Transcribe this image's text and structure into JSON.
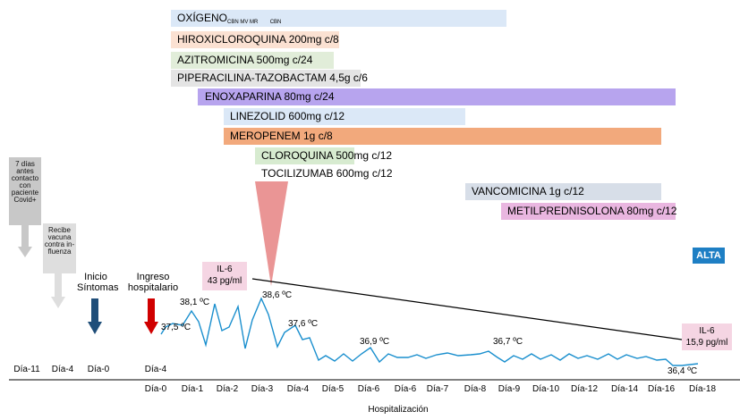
{
  "treatments": {
    "oxigeno": {
      "label": "OXÍGENO",
      "sub1": "CBN MV MR",
      "sub2": "CBN",
      "color": "#dbe8f7"
    },
    "hidroxi": {
      "label": "HIROXICLOROQUINA 200mg  c/8",
      "color": "#fbe1d2"
    },
    "azitro": {
      "label": "AZITROMICINA 500mg  c/24",
      "color": "#e1edd9"
    },
    "pipera": {
      "label": "PIPERACILINA-TAZOBACTAM 4,5g  c/6",
      "color": "#e4e4e4"
    },
    "enoxa": {
      "label": "ENOXAPARINA 80mg  c/24",
      "color": "#b7a4ee"
    },
    "linezolid": {
      "label": "LINEZOLID 600mg  c/12",
      "color": "#dbe8f7"
    },
    "meropenem": {
      "label": "MEROPENEM 1g  c/8",
      "color": "#f2a97c"
    },
    "cloroquina": {
      "label": "CLOROQUINA 500mg  c/12",
      "color": "#d7ebd0"
    },
    "tocilizumab": {
      "label": "TOCILIZUMAB 600mg  c/12"
    },
    "vancomicina": {
      "label": "VANCOMICINA 1g  c/12",
      "color": "#d7dee8"
    },
    "metilpred": {
      "label": "METILPREDNISOLONA 80mg  c/12",
      "color": "#e9b6e0"
    }
  },
  "timeline_notes": {
    "contact": [
      "7 días",
      "antes",
      "contacto",
      "con",
      "paciente",
      "Covid+"
    ],
    "vaccine": [
      "Recibe",
      "vacuna",
      "contra in-",
      "fluenza"
    ],
    "inicio": [
      "Inicio",
      "Síntomas"
    ],
    "ingreso": [
      "Ingreso",
      "hospitalario"
    ]
  },
  "alta": "ALTA",
  "il6_first": [
    "IL-6",
    "43 pg/ml"
  ],
  "il6_last": [
    "IL-6",
    "15,9 pg/ml"
  ],
  "temps": [
    "37,5 ºC",
    "38,1 ºC",
    "38,6 ºC",
    "37,6 ºC",
    "36,9 ºC",
    "36,7 ºC",
    "36,4 ºC"
  ],
  "pre_days": [
    "Día-11",
    "Día-4",
    "Día-0",
    "Día-4"
  ],
  "hosp_days": [
    "Día-0",
    "Día-1",
    "Día-2",
    "Día-3",
    "Día-4",
    "Día-5",
    "Día-6",
    "Día-6",
    "Día-7",
    "Día-8",
    "Día-9",
    "Día-10",
    "Día-12",
    "Día-14",
    "Día-16",
    "Día-18"
  ],
  "xaxis_title": "Hospitalización",
  "colors": {
    "temp_line": "#1a8fce",
    "alta": "#1e7fc4",
    "arrow_blue": "#1f4e79",
    "arrow_red": "#d00000",
    "arrow_grey": "#c8c8c8",
    "triangle": "#e88a8a"
  }
}
